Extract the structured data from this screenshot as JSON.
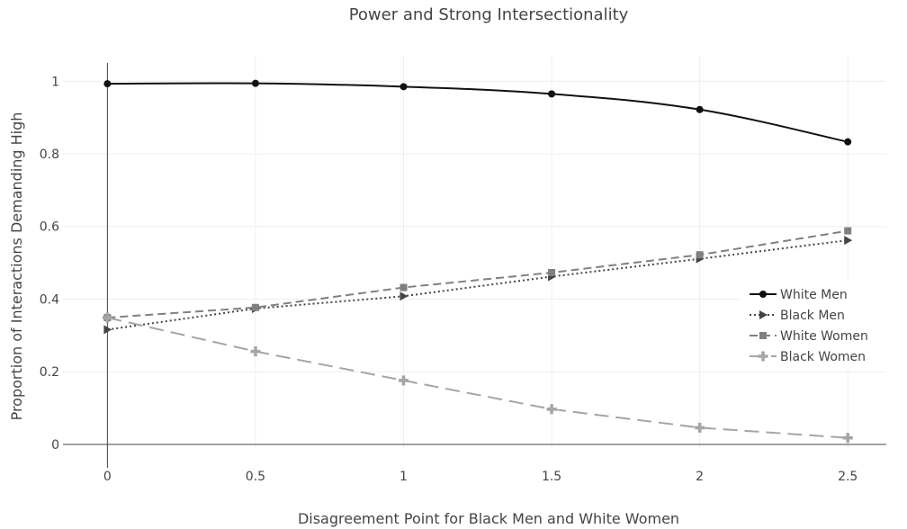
{
  "chart_data": {
    "type": "line",
    "title": "Power and Strong Intersectionality",
    "xlabel": "Disagreement Point for Black Men and White Women",
    "ylabel": "Proportion of Interactions Demanding High",
    "x": [
      0,
      0.5,
      1,
      1.5,
      2,
      2.5
    ],
    "x_ticks": [
      "0",
      "0.5",
      "1",
      "1.5",
      "2",
      "2.5"
    ],
    "y_ticks": [
      "0",
      "0.2",
      "0.4",
      "0.6",
      "0.8",
      "1"
    ],
    "xlim": [
      -0.15,
      2.63
    ],
    "ylim": [
      -0.01,
      1.07
    ],
    "grid": true,
    "legend_position": "right",
    "series": [
      {
        "name": "White Men",
        "values": [
          0.993,
          0.994,
          0.985,
          0.965,
          0.922,
          0.833
        ],
        "color": "#111111",
        "dash": "solid",
        "marker": "circle"
      },
      {
        "name": "Black Men",
        "values": [
          0.316,
          0.374,
          0.408,
          0.462,
          0.511,
          0.562
        ],
        "color": "#444444",
        "dash": "dot",
        "marker": "triangle-right"
      },
      {
        "name": "White Women",
        "values": [
          0.349,
          0.377,
          0.432,
          0.473,
          0.522,
          0.588
        ],
        "color": "#808080",
        "dash": "dash",
        "marker": "square"
      },
      {
        "name": "Black Women",
        "values": [
          0.349,
          0.256,
          0.176,
          0.097,
          0.046,
          0.018
        ],
        "color": "#a5a5a5",
        "dash": "longdash",
        "marker": "cross"
      }
    ]
  }
}
